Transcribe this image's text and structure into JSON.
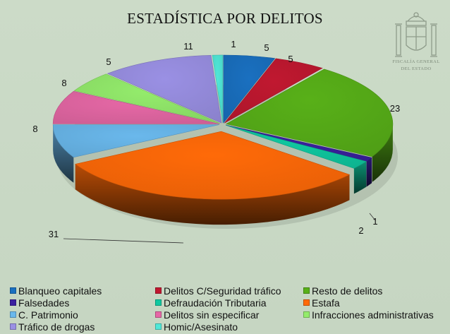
{
  "chart_data": {
    "type": "pie",
    "title": "ESTADÍSTICA POR DELITOS",
    "series": [
      {
        "name": "Blanqueo capitales",
        "value": 5,
        "color": "#1a70c0"
      },
      {
        "name": "Delitos C/Seguridad tráfico",
        "value": 5,
        "color": "#c01830"
      },
      {
        "name": "Resto de delitos",
        "value": 23,
        "color": "#58b018"
      },
      {
        "name": "Falsedades",
        "value": 1,
        "color": "#3a20a0"
      },
      {
        "name": "Defraudación Tributaria",
        "value": 2,
        "color": "#10c8a0"
      },
      {
        "name": "Estafa",
        "value": 31,
        "color": "#ff6a08"
      },
      {
        "name": "C. Patrimonio",
        "value": 8,
        "color": "#6ab8ec"
      },
      {
        "name": "Delitos sin especificar",
        "value": 8,
        "color": "#e668a6"
      },
      {
        "name": "Infracciones administrativas",
        "value": 5,
        "color": "#94ec6c"
      },
      {
        "name": "Tráfico de drogas",
        "value": 11,
        "color": "#9a90e4"
      },
      {
        "name": "Homic/Asesinato",
        "value": 1,
        "color": "#50e8d8"
      }
    ],
    "legend_position": "bottom"
  },
  "logo": {
    "line1": "FISCALÍA GENERAL",
    "line2": "DEL ESTADO"
  }
}
